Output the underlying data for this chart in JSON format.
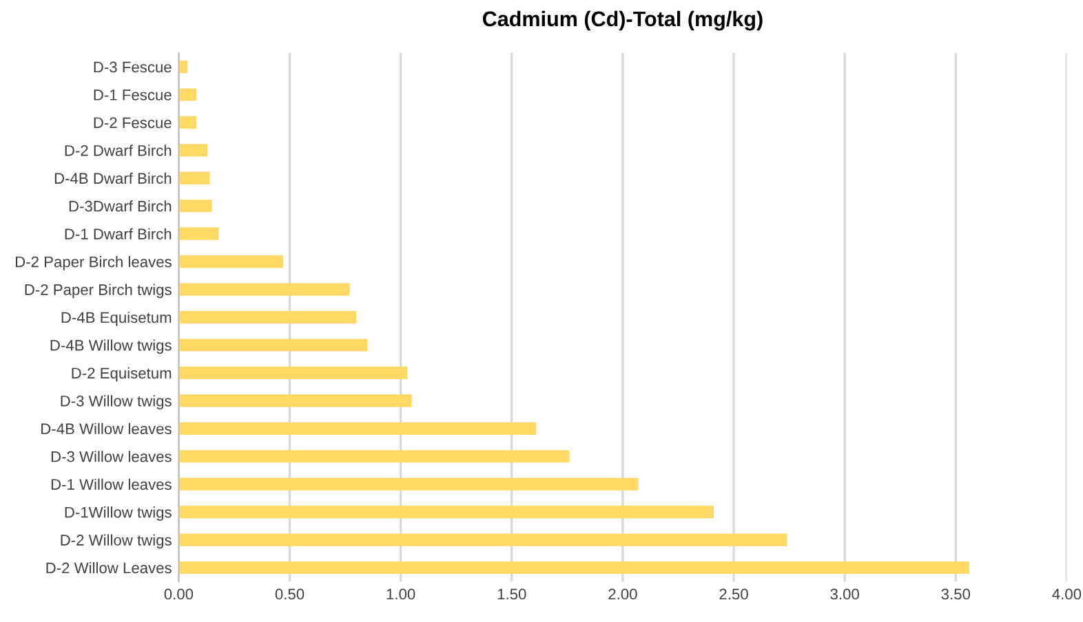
{
  "chart_data": {
    "type": "bar",
    "orientation": "horizontal",
    "title": "Cadmium (Cd)-Total (mg/kg)",
    "categories": [
      "D-3 Fescue",
      "D-1 Fescue",
      "D-2 Fescue",
      "D-2 Dwarf Birch",
      "D-4B Dwarf Birch",
      "D-3Dwarf Birch",
      "D-1 Dwarf Birch",
      "D-2 Paper Birch leaves",
      "D-2 Paper Birch twigs",
      "D-4B Equisetum",
      "D-4B Willow twigs",
      "D-2 Equisetum",
      "D-3 Willow twigs",
      "D-4B Willow leaves",
      "D-3 Willow leaves",
      "D-1 Willow leaves",
      "D-1Willow twigs",
      "D-2 Willow twigs",
      "D-2 Willow Leaves"
    ],
    "values": [
      0.04,
      0.08,
      0.08,
      0.13,
      0.14,
      0.15,
      0.18,
      0.47,
      0.77,
      0.8,
      0.85,
      1.03,
      1.05,
      1.61,
      1.76,
      2.07,
      2.41,
      2.74,
      3.56
    ],
    "color": "#ffd966",
    "xlim": [
      0,
      4
    ],
    "xticks": [
      {
        "value": 0,
        "label": "0.00"
      },
      {
        "value": 0.5,
        "label": "0.50"
      },
      {
        "value": 1,
        "label": "1.00"
      },
      {
        "value": 1.5,
        "label": "1.50"
      },
      {
        "value": 2,
        "label": "2.00"
      },
      {
        "value": 2.5,
        "label": "2.50"
      },
      {
        "value": 3,
        "label": "3.00"
      },
      {
        "value": 3.5,
        "label": "3.50"
      },
      {
        "value": 4,
        "label": "4.00"
      }
    ],
    "grid": "x",
    "legend": false
  }
}
